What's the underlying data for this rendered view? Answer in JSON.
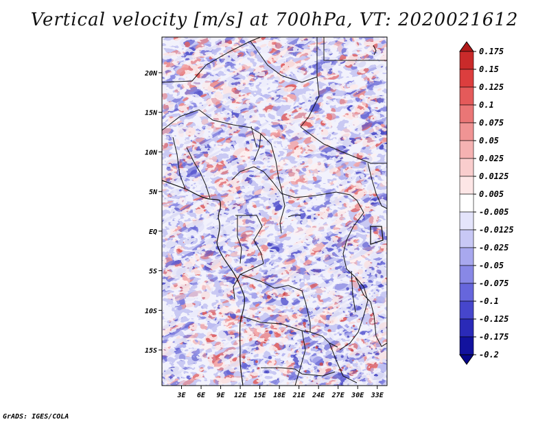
{
  "title": "Vertical velocity [m/s] at 700hPa, VT: 2020021612",
  "credit": "GrADS: IGES/COLA",
  "map": {
    "lat_range": [
      -19.5,
      24.5
    ],
    "lon_range": [
      0,
      34.5
    ],
    "lat_ticks": [
      {
        "lat": 20,
        "label": "20N"
      },
      {
        "lat": 15,
        "label": "15N"
      },
      {
        "lat": 10,
        "label": "10N"
      },
      {
        "lat": 5,
        "label": "5N"
      },
      {
        "lat": 0,
        "label": "EQ"
      },
      {
        "lat": -5,
        "label": "5S"
      },
      {
        "lat": -10,
        "label": "10S"
      },
      {
        "lat": -15,
        "label": "15S"
      }
    ],
    "lon_ticks": [
      {
        "lon": 3,
        "label": "3E"
      },
      {
        "lon": 6,
        "label": "6E"
      },
      {
        "lon": 9,
        "label": "9E"
      },
      {
        "lon": 12,
        "label": "12E"
      },
      {
        "lon": 15,
        "label": "15E"
      },
      {
        "lon": 18,
        "label": "18E"
      },
      {
        "lon": 21,
        "label": "21E"
      },
      {
        "lon": 24,
        "label": "24E"
      },
      {
        "lon": 27,
        "label": "27E"
      },
      {
        "lon": 30,
        "label": "30E"
      },
      {
        "lon": 33,
        "label": "33E"
      }
    ]
  },
  "colorbar": {
    "labels": [
      "0.175",
      "0.15",
      "0.125",
      "0.1",
      "0.075",
      "0.05",
      "0.025",
      "0.0125",
      "0.005",
      "-0.005",
      "-0.0125",
      "-0.025",
      "-0.05",
      "-0.075",
      "-0.1",
      "-0.125",
      "-0.175",
      "-0.2"
    ],
    "colors": [
      "#b01a1a",
      "#c92a2a",
      "#dc3e3e",
      "#e45a5a",
      "#ea7676",
      "#f09494",
      "#f5b2b2",
      "#f9cdcd",
      "#fde6e6",
      "#ffffff",
      "#e4e4fb",
      "#c8c8f5",
      "#a8a8ee",
      "#8888e6",
      "#6666dc",
      "#4646cc",
      "#2a2ab8",
      "#12129e",
      "#06068a"
    ]
  }
}
